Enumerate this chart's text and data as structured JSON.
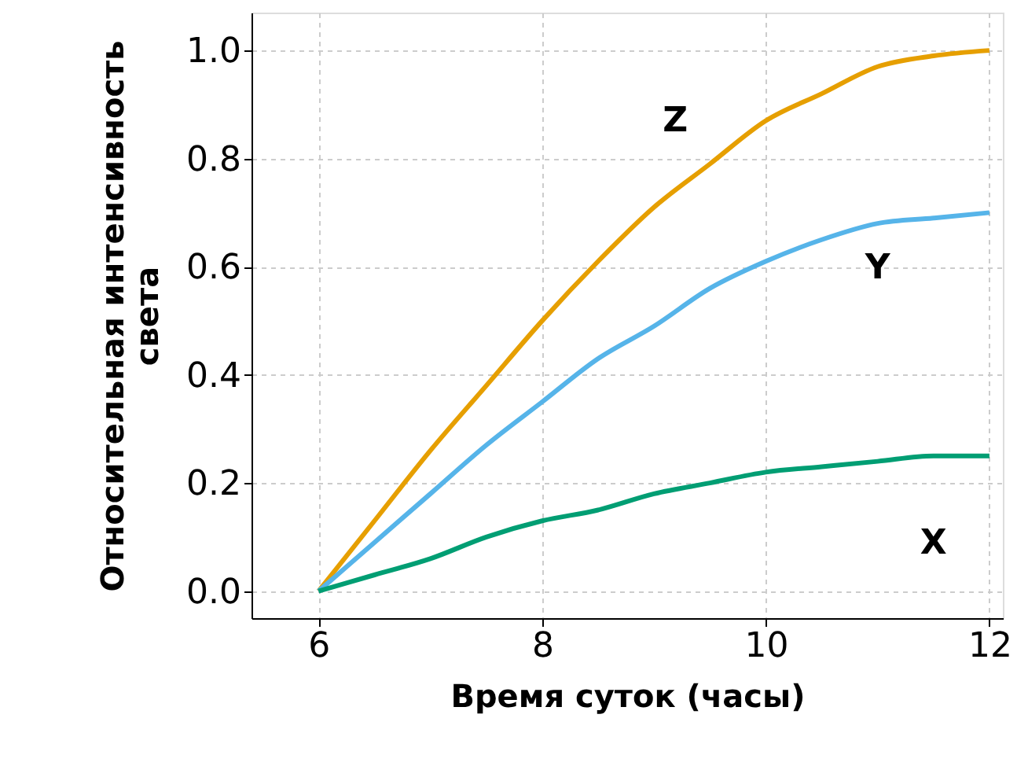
{
  "chart_data": {
    "type": "line",
    "xlabel": "Время суток (часы)",
    "ylabel": "Относительная интенсивность света",
    "x": [
      6,
      6.5,
      7,
      7.5,
      8,
      8.5,
      9,
      9.5,
      10,
      10.5,
      11,
      11.5,
      12
    ],
    "series": [
      {
        "name": "Z",
        "color": "#e69f00",
        "values": [
          0,
          0.13,
          0.26,
          0.38,
          0.5,
          0.61,
          0.71,
          0.79,
          0.87,
          0.92,
          0.97,
          0.99,
          1.0
        ]
      },
      {
        "name": "Y",
        "color": "#56b4e9",
        "values": [
          0,
          0.09,
          0.18,
          0.27,
          0.35,
          0.43,
          0.49,
          0.56,
          0.61,
          0.65,
          0.68,
          0.69,
          0.7
        ]
      },
      {
        "name": "X",
        "color": "#009e73",
        "values": [
          0,
          0.03,
          0.06,
          0.1,
          0.13,
          0.15,
          0.18,
          0.2,
          0.22,
          0.23,
          0.24,
          0.25,
          0.25
        ]
      }
    ],
    "xlim": [
      5.4,
      12.12
    ],
    "ylim": [
      -0.05,
      1.07
    ],
    "xticks": [
      6,
      8,
      10,
      12
    ],
    "yticks": [
      {
        "value": 0,
        "label": "0.0"
      },
      0.2,
      0.4,
      0.6,
      0.8,
      {
        "value": 1,
        "label": "1.0"
      }
    ],
    "grid": true,
    "line_style": "solid",
    "marker": "none"
  }
}
